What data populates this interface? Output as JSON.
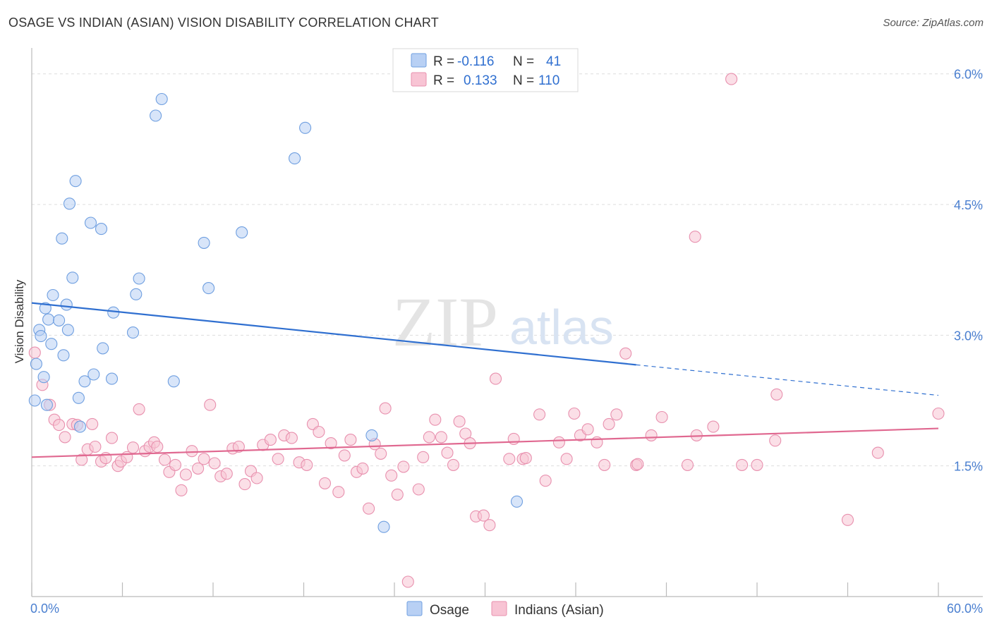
{
  "title": "OSAGE VS INDIAN (ASIAN) VISION DISABILITY CORRELATION CHART",
  "source": "Source: ZipAtlas.com",
  "watermark": {
    "zip": "ZIP",
    "atlas": "atlas"
  },
  "colors": {
    "osage_fill": "#b8d0f4",
    "osage_stroke": "#6f9fe0",
    "osage_line": "#2f6fd0",
    "indian_fill": "#f8c4d4",
    "indian_stroke": "#e890ae",
    "indian_line": "#e06890",
    "tick_label": "#4a7fd0",
    "grid": "#dddddd"
  },
  "legend_top": {
    "rows": [
      {
        "series": "osage",
        "r_label": "R =",
        "r_value": "-0.116",
        "n_label": "N =",
        "n_value": "41"
      },
      {
        "series": "indian",
        "r_label": "R =",
        "r_value": "0.133",
        "n_label": "N =",
        "n_value": "110"
      }
    ]
  },
  "chart_data": {
    "type": "scatter",
    "title": "OSAGE VS INDIAN (ASIAN) VISION DISABILITY CORRELATION CHART",
    "xlabel": "",
    "ylabel": "Vision Disability",
    "xlim": [
      0,
      60
    ],
    "ylim": [
      0,
      6.2
    ],
    "x_tick_labels": [
      "0.0%",
      "60.0%"
    ],
    "y_ticks": [
      1.5,
      3.0,
      4.5,
      6.0
    ],
    "y_tick_labels": [
      "1.5%",
      "3.0%",
      "4.5%",
      "6.0%"
    ],
    "grid": "horizontal dashed",
    "legend_position": "bottom-center",
    "series": [
      {
        "name": "Osage",
        "color": "#b8d0f4",
        "r": -0.116,
        "n": 41,
        "trend": {
          "x": [
            0,
            40
          ],
          "y": [
            3.37,
            2.66
          ],
          "dashed_to": [
            60,
            2.31
          ]
        },
        "points": [
          [
            0.2,
            2.25
          ],
          [
            0.3,
            2.67
          ],
          [
            0.5,
            3.06
          ],
          [
            0.6,
            2.99
          ],
          [
            0.8,
            2.52
          ],
          [
            0.9,
            3.31
          ],
          [
            1.1,
            3.18
          ],
          [
            1.3,
            2.9
          ],
          [
            1.4,
            3.46
          ],
          [
            1.8,
            3.17
          ],
          [
            2.0,
            4.11
          ],
          [
            2.1,
            2.77
          ],
          [
            2.3,
            3.35
          ],
          [
            2.4,
            3.06
          ],
          [
            2.5,
            4.51
          ],
          [
            2.7,
            3.66
          ],
          [
            2.9,
            4.77
          ],
          [
            3.1,
            2.28
          ],
          [
            3.2,
            1.95
          ],
          [
            3.5,
            2.47
          ],
          [
            3.9,
            4.29
          ],
          [
            4.1,
            2.55
          ],
          [
            4.6,
            4.22
          ],
          [
            4.7,
            2.85
          ],
          [
            5.3,
            2.5
          ],
          [
            5.4,
            3.26
          ],
          [
            6.7,
            3.03
          ],
          [
            6.9,
            3.47
          ],
          [
            7.1,
            3.65
          ],
          [
            8.2,
            5.52
          ],
          [
            8.6,
            5.71
          ],
          [
            9.4,
            2.47
          ],
          [
            11.4,
            4.06
          ],
          [
            11.7,
            3.54
          ],
          [
            13.9,
            4.18
          ],
          [
            17.4,
            5.03
          ],
          [
            18.1,
            5.38
          ],
          [
            22.5,
            1.85
          ],
          [
            23.3,
            0.8
          ],
          [
            32.1,
            1.09
          ],
          [
            1.0,
            2.2
          ]
        ]
      },
      {
        "name": "Indians (Asian)",
        "color": "#f8c4d4",
        "r": 0.133,
        "n": 110,
        "trend": {
          "x": [
            0,
            60
          ],
          "y": [
            1.6,
            1.93
          ]
        },
        "points": [
          [
            0.2,
            2.8
          ],
          [
            0.7,
            2.43
          ],
          [
            1.2,
            2.2
          ],
          [
            1.5,
            2.03
          ],
          [
            1.8,
            1.97
          ],
          [
            2.2,
            1.83
          ],
          [
            2.7,
            1.98
          ],
          [
            3.0,
            1.97
          ],
          [
            3.3,
            1.57
          ],
          [
            3.7,
            1.69
          ],
          [
            4.0,
            1.98
          ],
          [
            4.2,
            1.72
          ],
          [
            4.6,
            1.55
          ],
          [
            4.9,
            1.59
          ],
          [
            5.3,
            1.82
          ],
          [
            5.7,
            1.5
          ],
          [
            5.9,
            1.55
          ],
          [
            6.3,
            1.6
          ],
          [
            6.7,
            1.71
          ],
          [
            7.1,
            2.15
          ],
          [
            7.5,
            1.67
          ],
          [
            7.8,
            1.72
          ],
          [
            8.1,
            1.77
          ],
          [
            8.3,
            1.72
          ],
          [
            8.8,
            1.57
          ],
          [
            9.1,
            1.43
          ],
          [
            9.5,
            1.51
          ],
          [
            9.9,
            1.22
          ],
          [
            10.2,
            1.4
          ],
          [
            10.6,
            1.67
          ],
          [
            11.0,
            1.47
          ],
          [
            11.4,
            1.58
          ],
          [
            11.8,
            2.2
          ],
          [
            12.1,
            1.53
          ],
          [
            12.5,
            1.38
          ],
          [
            12.9,
            1.41
          ],
          [
            13.3,
            1.7
          ],
          [
            13.7,
            1.72
          ],
          [
            14.1,
            1.29
          ],
          [
            14.5,
            1.44
          ],
          [
            14.9,
            1.36
          ],
          [
            15.3,
            1.74
          ],
          [
            15.8,
            1.8
          ],
          [
            16.3,
            1.58
          ],
          [
            16.7,
            1.85
          ],
          [
            17.2,
            1.82
          ],
          [
            17.7,
            1.54
          ],
          [
            18.2,
            1.51
          ],
          [
            18.6,
            1.98
          ],
          [
            19.0,
            1.89
          ],
          [
            19.4,
            1.3
          ],
          [
            19.8,
            1.76
          ],
          [
            20.3,
            1.2
          ],
          [
            20.7,
            1.62
          ],
          [
            21.1,
            1.8
          ],
          [
            21.5,
            1.43
          ],
          [
            21.9,
            1.47
          ],
          [
            22.3,
            1.01
          ],
          [
            22.7,
            1.75
          ],
          [
            23.1,
            1.64
          ],
          [
            23.4,
            2.16
          ],
          [
            23.8,
            1.39
          ],
          [
            24.2,
            1.17
          ],
          [
            24.6,
            1.49
          ],
          [
            24.9,
            0.17
          ],
          [
            25.6,
            1.23
          ],
          [
            25.9,
            1.6
          ],
          [
            26.3,
            1.83
          ],
          [
            26.7,
            2.03
          ],
          [
            27.1,
            1.83
          ],
          [
            27.5,
            1.65
          ],
          [
            27.9,
            1.51
          ],
          [
            28.3,
            2.01
          ],
          [
            28.7,
            1.87
          ],
          [
            29.0,
            1.76
          ],
          [
            29.4,
            0.92
          ],
          [
            29.9,
            0.93
          ],
          [
            30.3,
            0.82
          ],
          [
            30.7,
            2.5
          ],
          [
            31.6,
            1.58
          ],
          [
            31.9,
            1.81
          ],
          [
            32.5,
            1.58
          ],
          [
            32.7,
            1.59
          ],
          [
            33.6,
            2.09
          ],
          [
            34.0,
            1.33
          ],
          [
            34.9,
            1.77
          ],
          [
            35.4,
            1.58
          ],
          [
            35.9,
            2.1
          ],
          [
            36.3,
            1.85
          ],
          [
            36.8,
            1.92
          ],
          [
            37.4,
            1.77
          ],
          [
            37.9,
            1.51
          ],
          [
            38.2,
            1.98
          ],
          [
            38.7,
            2.09
          ],
          [
            39.3,
            2.79
          ],
          [
            40.0,
            1.51
          ],
          [
            40.1,
            1.52
          ],
          [
            41.0,
            1.85
          ],
          [
            41.7,
            2.06
          ],
          [
            43.4,
            1.51
          ],
          [
            43.9,
            4.13
          ],
          [
            44.0,
            1.85
          ],
          [
            45.1,
            1.95
          ],
          [
            46.3,
            5.94
          ],
          [
            47.0,
            1.51
          ],
          [
            48.0,
            1.51
          ],
          [
            49.2,
            1.79
          ],
          [
            49.3,
            2.32
          ],
          [
            54.0,
            0.88
          ],
          [
            56.0,
            1.65
          ],
          [
            60.0,
            2.1
          ]
        ]
      }
    ]
  },
  "legend_bottom": [
    {
      "series": "osage",
      "label": "Osage"
    },
    {
      "series": "indian",
      "label": "Indians (Asian)"
    }
  ]
}
